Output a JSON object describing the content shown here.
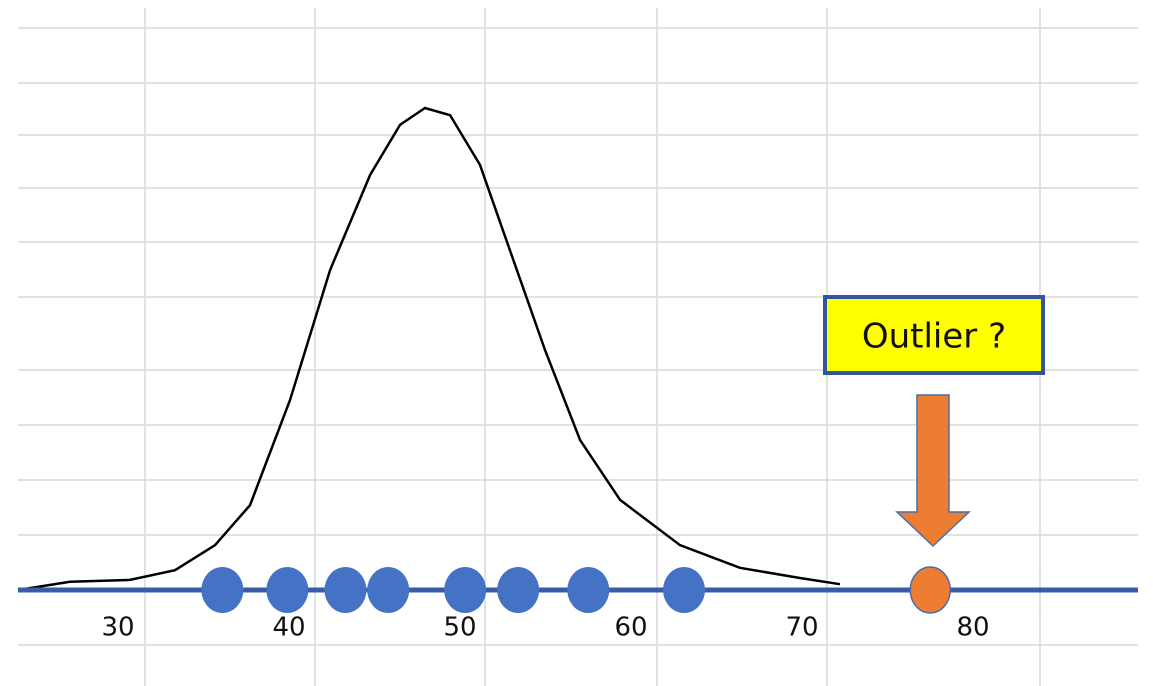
{
  "chart_data": {
    "type": "dotplot",
    "annotation": "Outlier ?",
    "xlim": [
      24.15,
      89.65
    ],
    "xticks": [
      30,
      40,
      50,
      60,
      70,
      80
    ],
    "ylim": [
      0,
      100
    ],
    "points": {
      "color": "#4472c4",
      "x": [
        36.1,
        39.9,
        43.3,
        45.8,
        50.3,
        53.4,
        57.5,
        63.1
      ]
    },
    "outlier": {
      "color": "#ed7d31",
      "x": 77.5
    },
    "curve": {
      "color": "#000000",
      "x": [
        24.15,
        27.19,
        30.7,
        33.33,
        35.67,
        37.72,
        40.06,
        42.4,
        44.74,
        46.49,
        47.95,
        49.42,
        51.17,
        52.92,
        54.97,
        57.02,
        59.36,
        62.87,
        66.37,
        69.88,
        72.22
      ],
      "y": [
        0,
        1.7,
        2.1,
        4.1,
        9.3,
        17.6,
        39.4,
        66.4,
        86.1,
        96.5,
        100,
        98.5,
        88.2,
        70.5,
        49.8,
        31.1,
        18.7,
        9.3,
        4.6,
        2.5,
        1.2
      ]
    }
  }
}
